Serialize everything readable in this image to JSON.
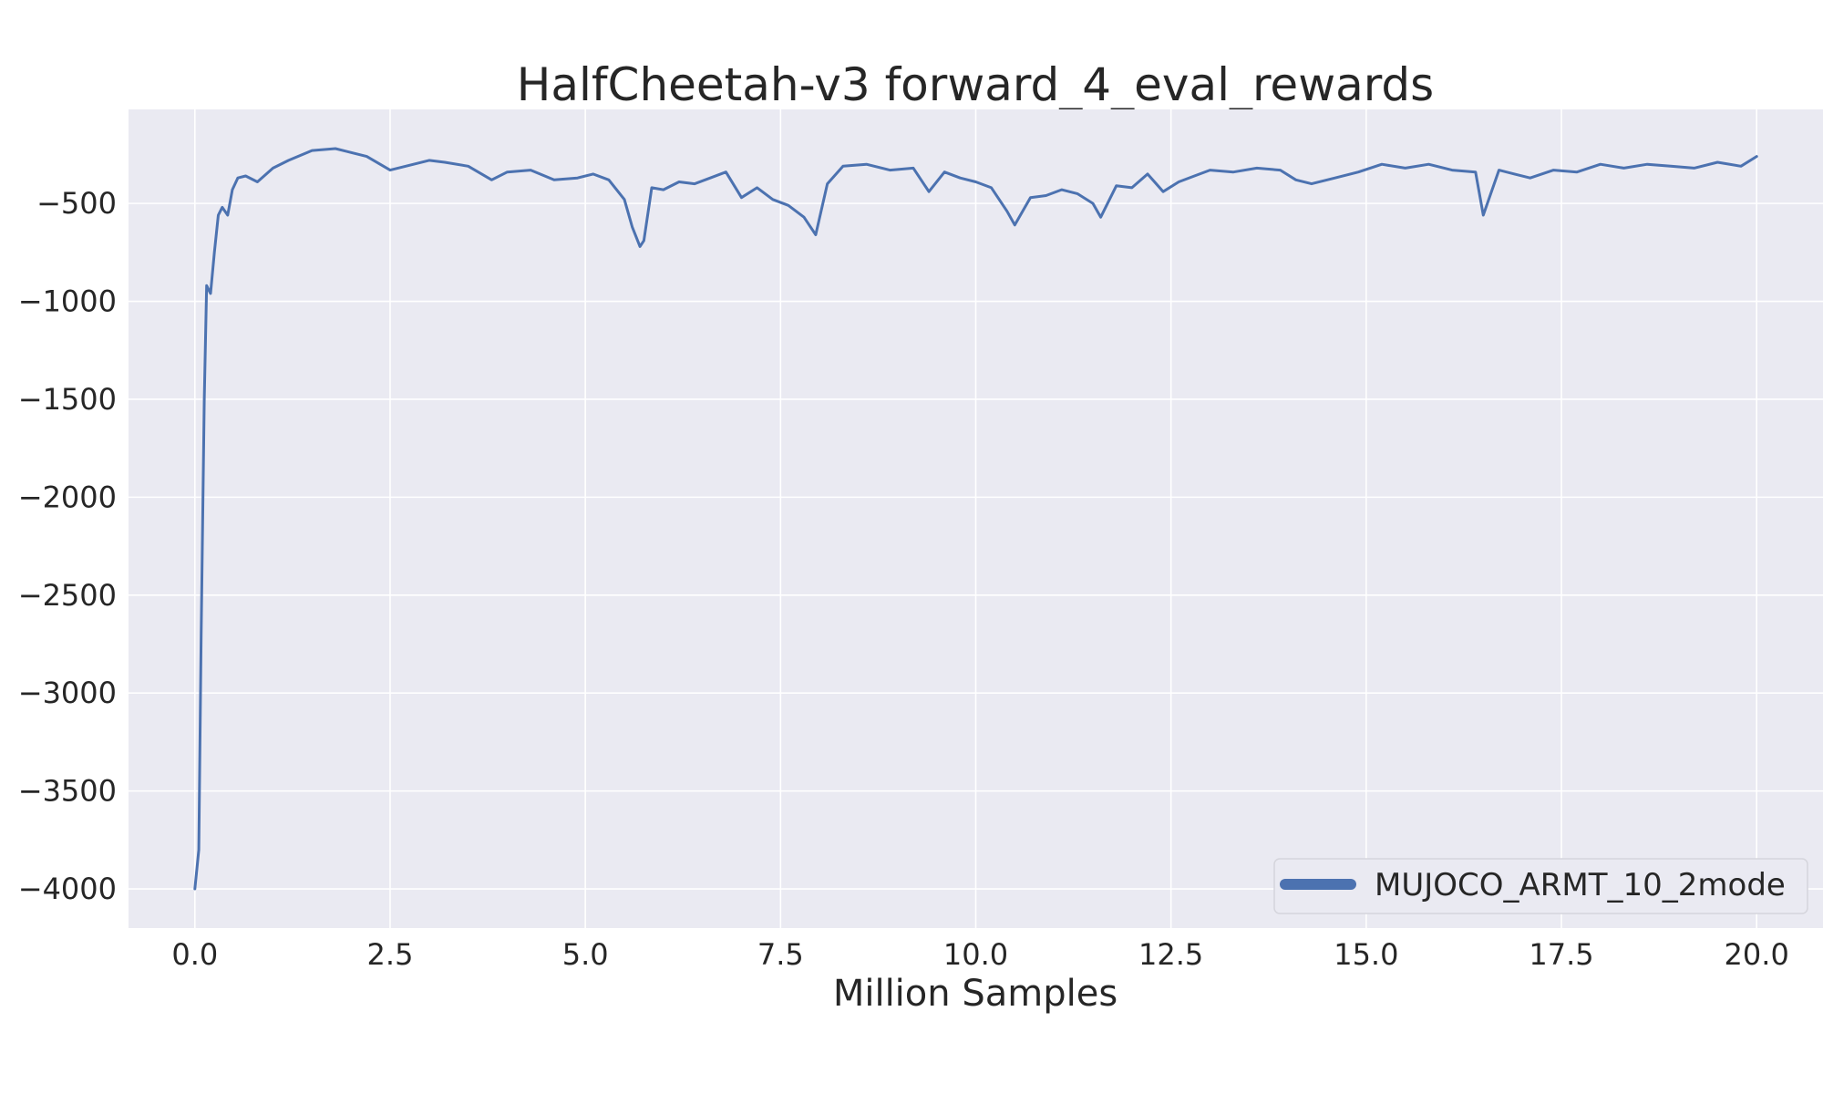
{
  "chart_data": {
    "type": "line",
    "title": "HalfCheetah-v3 forward_4_eval_rewards",
    "xlabel": "Million Samples",
    "ylabel": "",
    "xlim": [
      -0.85,
      20.85
    ],
    "ylim": [
      -4200,
      -20
    ],
    "x_ticks": [
      0.0,
      2.5,
      5.0,
      7.5,
      10.0,
      12.5,
      15.0,
      17.5,
      20.0
    ],
    "x_tick_labels": [
      "0.0",
      "2.5",
      "5.0",
      "7.5",
      "10.0",
      "12.5",
      "15.0",
      "17.5",
      "20.0"
    ],
    "y_ticks": [
      -4000,
      -3500,
      -3000,
      -2500,
      -2000,
      -1500,
      -1000,
      -500
    ],
    "y_tick_labels": [
      "−4000",
      "−3500",
      "−3000",
      "−2500",
      "−2000",
      "−1500",
      "−1000",
      "−500"
    ],
    "grid": true,
    "legend_position": "bottom-right",
    "series": [
      {
        "name": "MUJOCO_ARMT_10_2mode",
        "color": "#4c72b0",
        "x": [
          0.0,
          0.05,
          0.08,
          0.12,
          0.15,
          0.2,
          0.25,
          0.3,
          0.35,
          0.42,
          0.48,
          0.55,
          0.65,
          0.8,
          1.0,
          1.2,
          1.5,
          1.8,
          2.0,
          2.2,
          2.5,
          2.8,
          3.0,
          3.2,
          3.5,
          3.8,
          4.0,
          4.3,
          4.6,
          4.9,
          5.1,
          5.3,
          5.5,
          5.6,
          5.7,
          5.75,
          5.85,
          6.0,
          6.2,
          6.4,
          6.6,
          6.8,
          7.0,
          7.2,
          7.4,
          7.6,
          7.8,
          7.95,
          8.1,
          8.3,
          8.6,
          8.9,
          9.2,
          9.4,
          9.6,
          9.8,
          10.0,
          10.2,
          10.4,
          10.5,
          10.7,
          10.9,
          11.1,
          11.3,
          11.5,
          11.6,
          11.8,
          12.0,
          12.2,
          12.4,
          12.6,
          12.8,
          13.0,
          13.3,
          13.6,
          13.9,
          14.1,
          14.3,
          14.6,
          14.9,
          15.2,
          15.5,
          15.8,
          16.1,
          16.4,
          16.5,
          16.7,
          16.9,
          17.1,
          17.4,
          17.7,
          18.0,
          18.3,
          18.6,
          18.9,
          19.2,
          19.5,
          19.8,
          20.0
        ],
        "y": [
          -4000,
          -3800,
          -2700,
          -1500,
          -920,
          -960,
          -750,
          -560,
          -520,
          -560,
          -430,
          -370,
          -360,
          -390,
          -320,
          -280,
          -230,
          -220,
          -240,
          -260,
          -330,
          -300,
          -280,
          -290,
          -310,
          -380,
          -340,
          -330,
          -380,
          -370,
          -350,
          -380,
          -480,
          -620,
          -720,
          -690,
          -420,
          -430,
          -390,
          -400,
          -370,
          -340,
          -470,
          -420,
          -480,
          -510,
          -570,
          -660,
          -400,
          -310,
          -300,
          -330,
          -320,
          -440,
          -340,
          -370,
          -390,
          -420,
          -540,
          -610,
          -470,
          -460,
          -430,
          -450,
          -500,
          -570,
          -410,
          -420,
          -350,
          -440,
          -390,
          -360,
          -330,
          -340,
          -320,
          -330,
          -380,
          -400,
          -370,
          -340,
          -300,
          -320,
          -300,
          -330,
          -340,
          -560,
          -330,
          -350,
          -370,
          -330,
          -340,
          -300,
          -320,
          -300,
          -310,
          -320,
          -290,
          -310,
          -260
        ]
      }
    ]
  }
}
